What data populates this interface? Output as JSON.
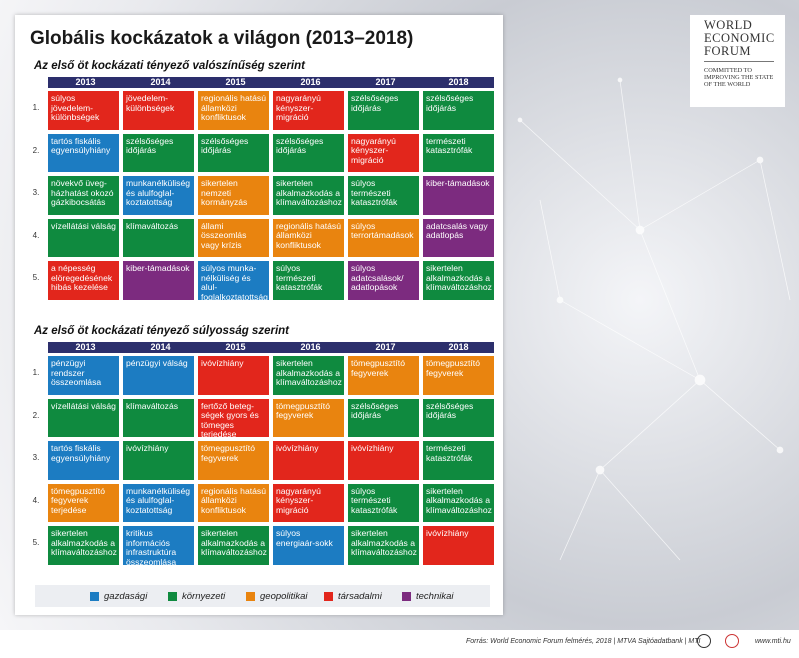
{
  "title": "Globális kockázatok a világon (2013–2018)",
  "logo": {
    "name": [
      "WORLD",
      "ECONOMIC",
      "FORUM"
    ],
    "motto": [
      "COMMITTED TO",
      "IMPROVING THE STATE",
      "OF THE WORLD"
    ]
  },
  "legend": [
    {
      "label": "gazdasági",
      "color": "#1c7cc2"
    },
    {
      "label": "környezeti",
      "color": "#0f8a3f"
    },
    {
      "label": "geopolitikai",
      "color": "#e9840f"
    },
    {
      "label": "társadalmi",
      "color": "#e2261c"
    },
    {
      "label": "technikai",
      "color": "#7c2b7f"
    }
  ],
  "tables": [
    {
      "title": "Az első öt kockázati tényező valószínűség szerint",
      "columns": [
        "2013",
        "2014",
        "2015",
        "2016",
        "2017",
        "2018"
      ],
      "row_labels": [
        "1.",
        "2.",
        "3.",
        "4.",
        "5."
      ],
      "rows": [
        [
          {
            "text": "súlyos jövedelem-különbségek",
            "cat": 3
          },
          {
            "text": "jövedelem-különbségek",
            "cat": 3
          },
          {
            "text": "regionális hatású államközi konfliktusok",
            "cat": 2
          },
          {
            "text": "nagyarányú kényszer-migráció",
            "cat": 3
          },
          {
            "text": "szélsőséges időjárás",
            "cat": 1
          },
          {
            "text": "szélsőséges időjárás",
            "cat": 1
          }
        ],
        [
          {
            "text": "tartós fiskális egyensúlyhiány",
            "cat": 0
          },
          {
            "text": "szélsőséges időjárás",
            "cat": 1
          },
          {
            "text": "szélsőséges időjárás",
            "cat": 1
          },
          {
            "text": "szélsőséges időjárás",
            "cat": 1
          },
          {
            "text": "nagyarányú kényszer-migráció",
            "cat": 3
          },
          {
            "text": "természeti katasztrófák",
            "cat": 1
          }
        ],
        [
          {
            "text": "növekvő üveg-házhatást okozó gázkibocsátás",
            "cat": 1
          },
          {
            "text": "munkanélküliség és alulfoglal-koztatottság",
            "cat": 0
          },
          {
            "text": "sikertelen nemzeti kormányzás",
            "cat": 2
          },
          {
            "text": "sikertelen alkalmazkodás a klímaváltozáshoz",
            "cat": 1
          },
          {
            "text": "súlyos természeti katasztrófák",
            "cat": 1
          },
          {
            "text": "kiber-támadások",
            "cat": 4
          }
        ],
        [
          {
            "text": "vízellátási válság",
            "cat": 1
          },
          {
            "text": "klímaváltozás",
            "cat": 1
          },
          {
            "text": "állami összeomlás vagy krízis",
            "cat": 2
          },
          {
            "text": "regionális hatású államközi konfliktusok",
            "cat": 2
          },
          {
            "text": "súlyos terrortámadások",
            "cat": 2
          },
          {
            "text": "adatcsalás vagy adatlopás",
            "cat": 4
          }
        ],
        [
          {
            "text": "a népesség elöregedésének hibás kezelése",
            "cat": 3
          },
          {
            "text": "kiber-támadások",
            "cat": 4
          },
          {
            "text": "súlyos munka-nélküliség és alul-foglalkoztatottság",
            "cat": 0
          },
          {
            "text": "súlyos természeti katasztrófák",
            "cat": 1
          },
          {
            "text": "súlyos adatcsalások/ adatlopások",
            "cat": 4
          },
          {
            "text": "sikertelen alkalmazkodás a klímaváltozáshoz",
            "cat": 1
          }
        ]
      ]
    },
    {
      "title": "Az első öt kockázati tényező súlyosság szerint",
      "columns": [
        "2013",
        "2014",
        "2015",
        "2016",
        "2017",
        "2018"
      ],
      "row_labels": [
        "1.",
        "2.",
        "3.",
        "4.",
        "5."
      ],
      "rows": [
        [
          {
            "text": "pénzügyi rendszer összeomlása",
            "cat": 0
          },
          {
            "text": "pénzügyi válság",
            "cat": 0
          },
          {
            "text": "ivóvízhiány",
            "cat": 3
          },
          {
            "text": "sikertelen alkalmazkodás a klímaváltozáshoz",
            "cat": 1
          },
          {
            "text": "tömegpusztító fegyverek",
            "cat": 2
          },
          {
            "text": "tömegpusztító fegyverek",
            "cat": 2
          }
        ],
        [
          {
            "text": "vízellátási válság",
            "cat": 1
          },
          {
            "text": "klímaváltozás",
            "cat": 1
          },
          {
            "text": "fertőző beteg-ségek gyors és tömeges terjedése",
            "cat": 3
          },
          {
            "text": "tömegpusztító fegyverek",
            "cat": 2
          },
          {
            "text": "szélsőséges időjárás",
            "cat": 1
          },
          {
            "text": "szélsőséges időjárás",
            "cat": 1
          }
        ],
        [
          {
            "text": "tartós fiskális egyensúlyhiány",
            "cat": 0
          },
          {
            "text": "ivóvízhiány",
            "cat": 1
          },
          {
            "text": "tömegpusztító fegyverek",
            "cat": 2
          },
          {
            "text": "ivóvízhiány",
            "cat": 3
          },
          {
            "text": "ivóvízhiány",
            "cat": 3
          },
          {
            "text": "természeti katasztrófák",
            "cat": 1
          }
        ],
        [
          {
            "text": "tömegpusztító fegyverek terjedése",
            "cat": 2
          },
          {
            "text": "munkanélküliség és alulfoglal-koztatottság",
            "cat": 0
          },
          {
            "text": "regionális hatású államközi konfliktusok",
            "cat": 2
          },
          {
            "text": "nagyarányú kényszer-migráció",
            "cat": 3
          },
          {
            "text": "súlyos természeti katasztrófák",
            "cat": 1
          },
          {
            "text": "sikertelen alkalmazkodás a klímaváltozáshoz",
            "cat": 1
          }
        ],
        [
          {
            "text": "sikertelen alkalmazkodás a klímaváltozáshoz",
            "cat": 1
          },
          {
            "text": "kritikus információs infrastruktúra összeomlása",
            "cat": 0
          },
          {
            "text": "sikertelen alkalmazkodás a klímaváltozáshoz",
            "cat": 1
          },
          {
            "text": "súlyos energiaár-sokk",
            "cat": 0
          },
          {
            "text": "sikertelen alkalmazkodás a klímaváltozáshoz",
            "cat": 1
          },
          {
            "text": "ivóvízhiány",
            "cat": 3
          }
        ]
      ]
    }
  ],
  "footer": {
    "source": "Forrás: World Economic Forum felmérés, 2018 | MTVA Sajtóadatbank | MTI",
    "site": "www.mti.hu"
  }
}
